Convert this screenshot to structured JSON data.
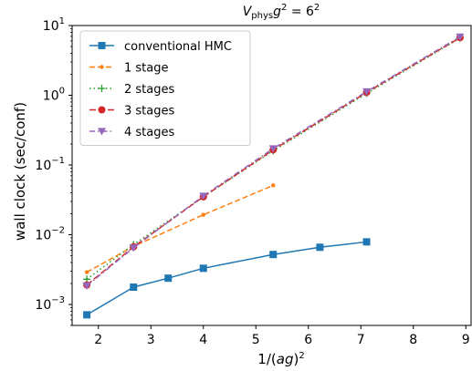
{
  "chart_data": {
    "type": "line",
    "title": "V_phys g^2 = 6^2",
    "title_parts": {
      "main": "V",
      "sub": "phys",
      "g": "g",
      "g_exp": "2",
      "eq": " = 6",
      "rhs_exp": "2"
    },
    "xlabel": "1/(ag)^2",
    "xlabel_parts": {
      "prefix": "1/(",
      "italic": "ag",
      "suffix": ")",
      "exp": "2"
    },
    "ylabel": "wall clock (sec/conf)",
    "xlim": [
      1.5,
      9.1
    ],
    "ylim": [
      0.0005,
      10
    ],
    "yscale": "log",
    "x_ticks": [
      2,
      3,
      4,
      5,
      6,
      7,
      8,
      9
    ],
    "x_tick_labels": [
      "2",
      "3",
      "4",
      "5",
      "6",
      "7",
      "8",
      "9"
    ],
    "y_ticks": [
      0.001,
      0.01,
      0.1,
      1,
      10
    ],
    "y_tick_labels": [
      {
        "base": "10",
        "exp": "−3"
      },
      {
        "base": "10",
        "exp": "−2"
      },
      {
        "base": "10",
        "exp": "−1"
      },
      {
        "base": "10",
        "exp": "0"
      },
      {
        "base": "10",
        "exp": "1"
      }
    ],
    "grid": false,
    "legend_position": "top-left",
    "series": [
      {
        "name": "conventional HMC",
        "color": "#1f77b4",
        "dash": "",
        "marker": "square",
        "marker_size": 4,
        "x": [
          1.78,
          2.67,
          3.33,
          4.0,
          5.33,
          6.22,
          7.11
        ],
        "y": [
          0.00071,
          0.00177,
          0.00238,
          0.0033,
          0.0052,
          0.0066,
          0.0079
        ]
      },
      {
        "name": "1 stage",
        "color": "#ff7f0e",
        "dash": "6,3",
        "marker": "dot",
        "marker_size": 2.2,
        "x": [
          1.78,
          2.67,
          4.0,
          5.33
        ],
        "y": [
          0.0029,
          0.0068,
          0.0193,
          0.051
        ]
      },
      {
        "name": "2 stages",
        "color": "#2ca02c",
        "dash": "1.5,3",
        "marker": "plus",
        "marker_size": 4,
        "x": [
          1.78,
          2.67,
          4.0,
          5.33,
          7.11,
          8.89
        ],
        "y": [
          0.0023,
          0.0072,
          0.035,
          0.16,
          1.06,
          6.6
        ]
      },
      {
        "name": "3 stages",
        "color": "#d62728",
        "dash": "7,3",
        "marker": "circle",
        "marker_size": 4,
        "x": [
          1.78,
          2.67,
          4.0,
          5.33,
          7.11,
          8.89
        ],
        "y": [
          0.0019,
          0.0067,
          0.035,
          0.165,
          1.1,
          6.7
        ]
      },
      {
        "name": "4 stages",
        "color": "#9467bd",
        "dash": "6,3,1.5,3",
        "marker": "triangle-down",
        "marker_size": 4.5,
        "x": [
          1.78,
          2.67,
          4.0,
          5.33,
          7.11,
          8.89
        ],
        "y": [
          0.00185,
          0.0065,
          0.036,
          0.172,
          1.13,
          6.9
        ]
      }
    ]
  }
}
